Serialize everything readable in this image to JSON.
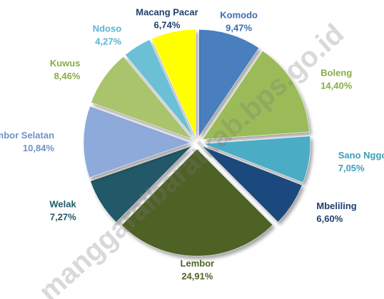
{
  "chart_data": {
    "type": "pie",
    "categories": [
      "Komodo",
      "Boleng",
      "Sano Nggoang",
      "Mbeliling",
      "Lembor",
      "Welak",
      "Lembor Selatan",
      "Kuwus",
      "Ndoso",
      "Macang Pacar"
    ],
    "values": [
      9.47,
      14.4,
      7.05,
      6.6,
      24.91,
      7.27,
      10.84,
      8.46,
      4.27,
      6.74
    ],
    "value_labels": [
      "9,47%",
      "14,40%",
      "7,05%",
      "6,60%",
      "24,91%",
      "7,27%",
      "10,84%",
      "8,46%",
      "4,27%",
      "6,74%"
    ],
    "colors": [
      "#4a7ebf",
      "#9bbb59",
      "#4bacc6",
      "#1f497d",
      "#4f6228",
      "#215968",
      "#8eaadb",
      "#a9c46c",
      "#6cc0d6",
      "#ffff00"
    ],
    "label_colors": [
      "#3c6eb0",
      "#8aac48",
      "#3c9fba",
      "#1f3f6d",
      "#4f6228",
      "#215968",
      "#6f91c9",
      "#8aac48",
      "#5bb5cf",
      "#1f3f6d"
    ],
    "watermark": "manggaraibaratkab.bps.go.id"
  }
}
